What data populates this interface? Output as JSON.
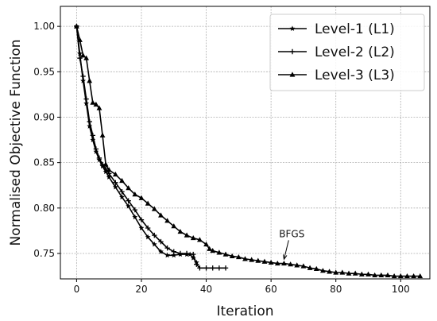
{
  "chart_data": {
    "type": "line",
    "title": "",
    "xlabel": "Iteration",
    "ylabel": "Normalised Objective Function",
    "xlim": [
      -5,
      109
    ],
    "ylim": [
      0.722,
      1.022
    ],
    "xticks": [
      0,
      20,
      40,
      60,
      80,
      100
    ],
    "yticks": [
      0.75,
      0.8,
      0.85,
      0.9,
      0.95,
      1.0
    ],
    "xtick_labels": [
      "0",
      "20",
      "40",
      "60",
      "80",
      "100"
    ],
    "ytick_labels": [
      "0.75",
      "0.80",
      "0.85",
      "0.90",
      "0.95",
      "1.00"
    ],
    "grid": true,
    "legend_position": "top-right",
    "annotation": {
      "text": "BFGS",
      "x": 64,
      "y": 0.741,
      "text_x": 62,
      "text_y": 0.768
    },
    "series": [
      {
        "name": "Level-1 (L1)",
        "marker": "star",
        "color": "#000000",
        "x": [
          0,
          1,
          2,
          3,
          4,
          5,
          6,
          7,
          8,
          9,
          10,
          12,
          14,
          16,
          18,
          20,
          22,
          24,
          26,
          28,
          30,
          32,
          34,
          35,
          36,
          37
        ],
        "y": [
          1.0,
          0.97,
          0.94,
          0.915,
          0.89,
          0.875,
          0.862,
          0.853,
          0.846,
          0.84,
          0.834,
          0.823,
          0.812,
          0.802,
          0.79,
          0.778,
          0.768,
          0.76,
          0.752,
          0.748,
          0.748,
          0.749,
          0.749,
          0.749,
          0.745,
          0.74
        ]
      },
      {
        "name": "Level-2 (L2)",
        "marker": "plus",
        "color": "#000000",
        "x": [
          0,
          1,
          2,
          3,
          4,
          5,
          6,
          7,
          8,
          9,
          10,
          12,
          14,
          16,
          18,
          20,
          22,
          24,
          26,
          28,
          30,
          32,
          34,
          36,
          37,
          38,
          40,
          42,
          44,
          46
        ],
        "y": [
          1.0,
          0.965,
          0.945,
          0.92,
          0.895,
          0.88,
          0.865,
          0.855,
          0.848,
          0.843,
          0.838,
          0.828,
          0.818,
          0.808,
          0.798,
          0.787,
          0.778,
          0.77,
          0.763,
          0.756,
          0.752,
          0.75,
          0.75,
          0.749,
          0.738,
          0.734,
          0.734,
          0.734,
          0.734,
          0.734
        ]
      },
      {
        "name": "Level-3 (L3)",
        "marker": "triangle",
        "color": "#000000",
        "x": [
          0,
          1,
          2,
          3,
          4,
          5,
          6,
          7,
          8,
          9,
          10,
          12,
          14,
          16,
          18,
          20,
          22,
          24,
          26,
          28,
          30,
          32,
          34,
          36,
          38,
          40,
          41,
          42,
          44,
          46,
          48,
          50,
          52,
          54,
          56,
          58,
          60,
          62,
          64,
          66,
          68,
          70,
          72,
          74,
          76,
          78,
          80,
          82,
          84,
          86,
          88,
          90,
          92,
          94,
          96,
          98,
          100,
          102,
          104,
          106
        ],
        "y": [
          1.0,
          0.985,
          0.968,
          0.965,
          0.94,
          0.916,
          0.914,
          0.91,
          0.88,
          0.848,
          0.842,
          0.837,
          0.83,
          0.822,
          0.815,
          0.811,
          0.805,
          0.799,
          0.792,
          0.786,
          0.78,
          0.774,
          0.77,
          0.767,
          0.765,
          0.76,
          0.755,
          0.753,
          0.751,
          0.749,
          0.747,
          0.746,
          0.744,
          0.743,
          0.742,
          0.741,
          0.74,
          0.739,
          0.739,
          0.738,
          0.737,
          0.736,
          0.734,
          0.733,
          0.731,
          0.73,
          0.729,
          0.729,
          0.728,
          0.728,
          0.727,
          0.727,
          0.726,
          0.726,
          0.726,
          0.725,
          0.725,
          0.725,
          0.725,
          0.725
        ]
      }
    ]
  }
}
